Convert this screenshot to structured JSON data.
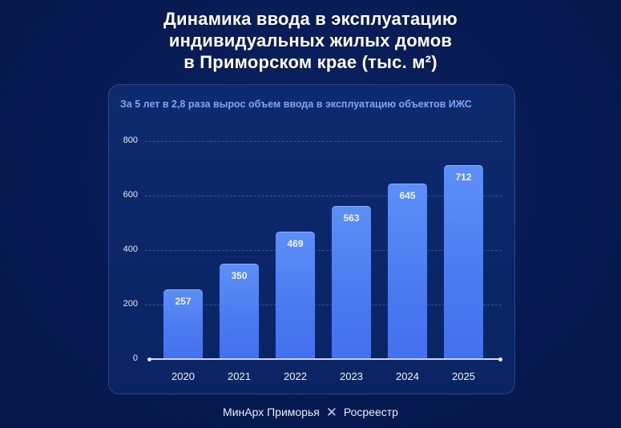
{
  "title": {
    "lines": [
      "Динамика ввода в эксплуатацию",
      "индивидуальных жилых домов",
      "в Приморском крае (тыс. м²)"
    ]
  },
  "card": {
    "subtitle": "За 5 лет в 2,8 раза вырос объем ввода в эксплуатацию объектов ИЖС"
  },
  "footer": {
    "left": "МинАрх Приморья",
    "separator": "✕",
    "right": "Росреестр"
  },
  "colors": {
    "background": "#071a52",
    "card": "#0b2566",
    "bar": "#4f80f3",
    "subtitle": "#7fa6f5"
  },
  "chart_data": {
    "type": "bar",
    "title": "Динамика ввода в эксплуатацию индивидуальных жилых домов в Приморском крае (тыс. м²)",
    "subtitle": "За 5 лет в 2,8 раза вырос объем ввода в эксплуатацию объектов ИЖС",
    "categories": [
      "2020",
      "2021",
      "2022",
      "2023",
      "2024",
      "2025"
    ],
    "values": [
      257,
      350,
      469,
      563,
      645,
      712
    ],
    "value_labels": [
      "257",
      "350",
      "469",
      "563",
      "645",
      "712"
    ],
    "xlabel": "",
    "ylabel": "тыс. м²",
    "ylim": [
      0,
      800
    ],
    "yticks": [
      "0",
      "200",
      "400",
      "600",
      "800"
    ],
    "grid": true,
    "legend": null
  }
}
